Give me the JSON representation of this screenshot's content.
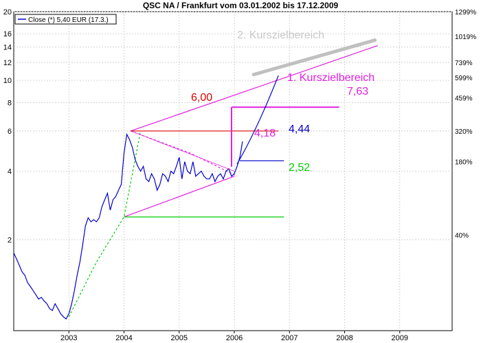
{
  "chart_data": {
    "type": "line",
    "title": "QSC NA / Frankfurt vom 03.01.2002 bis 17.12.2009",
    "legend": {
      "text": "Close (*) 5,40 EUR (17.3.)",
      "placement": "top-left"
    },
    "y_scale": "log",
    "ylim": [
      0.8,
      20
    ],
    "xlim": [
      2002.0,
      2009.95
    ],
    "grid": true,
    "y_ticks_left": [
      "20",
      "16",
      "14",
      "12",
      "10",
      "8",
      "6",
      "4",
      "2"
    ],
    "y_tick_values_left": [
      20,
      16,
      14,
      12,
      10,
      8,
      6,
      4,
      2
    ],
    "y_ticks_right": [
      "1299%",
      "1019%",
      "739%",
      "599%",
      "459%",
      "320%",
      "180%",
      "40%"
    ],
    "x_ticks": [
      "2003",
      "2004",
      "2005",
      "2006",
      "2007",
      "2008",
      "2009"
    ],
    "x_tick_values": [
      2003,
      2004,
      2005,
      2006,
      2007,
      2008,
      2009
    ],
    "series": [
      {
        "name": "Close (*) 5,40 EUR (17.3.)",
        "color": "#0000cc",
        "x": [
          2002.0,
          2002.05,
          2002.1,
          2002.15,
          2002.2,
          2002.25,
          2002.3,
          2002.35,
          2002.4,
          2002.45,
          2002.5,
          2002.55,
          2002.6,
          2002.65,
          2002.7,
          2002.75,
          2002.8,
          2002.85,
          2002.9,
          2002.95,
          2003.0,
          2003.05,
          2003.1,
          2003.15,
          2003.2,
          2003.25,
          2003.3,
          2003.35,
          2003.4,
          2003.45,
          2003.5,
          2003.55,
          2003.6,
          2003.65,
          2003.7,
          2003.75,
          2003.8,
          2003.85,
          2003.9,
          2003.95,
          2004.0,
          2004.05,
          2004.1,
          2004.15,
          2004.2,
          2004.25,
          2004.3,
          2004.35,
          2004.4,
          2004.45,
          2004.5,
          2004.55,
          2004.6,
          2004.65,
          2004.7,
          2004.75,
          2004.8,
          2004.85,
          2004.9,
          2004.95,
          2005.0,
          2005.05,
          2005.1,
          2005.15,
          2005.2,
          2005.25,
          2005.3,
          2005.35,
          2005.4,
          2005.45,
          2005.5,
          2005.55,
          2005.6,
          2005.65,
          2005.7,
          2005.75,
          2005.8,
          2005.85,
          2005.9,
          2005.95,
          2006.0,
          2006.05,
          2006.1,
          2006.15
        ],
        "values": [
          1.75,
          1.65,
          1.55,
          1.45,
          1.4,
          1.3,
          1.25,
          1.2,
          1.15,
          1.1,
          1.12,
          1.08,
          1.05,
          1.0,
          0.98,
          1.05,
          1.0,
          0.95,
          0.92,
          0.9,
          0.95,
          1.05,
          1.2,
          1.4,
          1.6,
          1.9,
          2.3,
          2.5,
          2.4,
          2.45,
          2.4,
          2.5,
          2.8,
          3.0,
          3.2,
          2.7,
          3.0,
          3.1,
          3.3,
          3.5,
          4.8,
          5.8,
          5.5,
          5.1,
          4.5,
          4.2,
          4.0,
          4.2,
          3.7,
          3.6,
          3.9,
          3.7,
          3.3,
          3.5,
          3.9,
          3.8,
          3.6,
          4.0,
          3.9,
          4.2,
          4.6,
          3.7,
          4.4,
          4.0,
          3.9,
          4.4,
          3.8,
          3.9,
          4.0,
          3.8,
          3.7,
          3.7,
          3.9,
          3.6,
          3.8,
          3.9,
          3.7,
          4.0,
          4.1,
          3.8,
          3.9,
          4.2,
          4.6,
          5.4
        ]
      }
    ],
    "annotations": [
      {
        "text": "2. Kurszielbereich",
        "color": "#c8c8c8"
      },
      {
        "text": "1. Kurszielbereich",
        "color": "#e020e0"
      },
      {
        "text": "7,63",
        "color": "#e020e0"
      },
      {
        "text": "6,00",
        "color": "#dd0000"
      },
      {
        "text": "4,44",
        "color": "#0000cc"
      },
      {
        "text": "4,18",
        "color": "#e020e0"
      },
      {
        "text": "2,52",
        "color": "#00cc00"
      }
    ],
    "lines": {
      "channel_upper": {
        "from": [
          2004.12,
          6.0
        ],
        "to": [
          2008.6,
          14.2
        ],
        "color": "#e020e0"
      },
      "channel_lower": {
        "from": [
          2004.0,
          2.52
        ],
        "to": [
          2006.0,
          3.8
        ],
        "color": "#e020e0"
      },
      "triangle_upper": {
        "from": [
          2004.12,
          6.0
        ],
        "to": [
          2006.0,
          4.0
        ],
        "color": "#e020e0"
      },
      "level_600": {
        "from": [
          2004.12,
          6.0
        ],
        "to": [
          2006.8,
          6.0
        ],
        "color": "#dd0000"
      },
      "level_444": {
        "from": [
          2006.1,
          4.44
        ],
        "to": [
          2006.9,
          4.44
        ],
        "color": "#0000cc"
      },
      "level_252": {
        "from": [
          2004.0,
          2.52
        ],
        "to": [
          2006.9,
          2.52
        ],
        "color": "#00cc00"
      },
      "target_763": {
        "from": [
          2005.95,
          7.63
        ],
        "to": [
          2007.9,
          7.63
        ],
        "color": "#e020e0"
      },
      "target_bar": {
        "from": [
          2005.95,
          4.18
        ],
        "to": [
          2005.95,
          7.63
        ],
        "color": "#e020e0"
      },
      "curve": {
        "points": [
          [
            2006.05,
            4.3
          ],
          [
            2006.4,
            6.0
          ],
          [
            2006.8,
            10.5
          ]
        ],
        "color": "#0000cc"
      },
      "zone2": {
        "from": [
          2006.35,
          10.6
        ],
        "to": [
          2008.55,
          15.0
        ],
        "color": "#c0c0c0"
      },
      "green_dashed": {
        "points": [
          [
            2003.0,
            0.92
          ],
          [
            2003.5,
            1.6
          ],
          [
            2004.0,
            2.52
          ],
          [
            2004.3,
            6.0
          ]
        ],
        "color": "#00cc00"
      },
      "magenta_dashed": {
        "points": [
          [
            2004.12,
            6.0
          ],
          [
            2005.2,
            4.8
          ],
          [
            2006.05,
            3.8
          ]
        ],
        "color": "#e020e0"
      }
    }
  }
}
